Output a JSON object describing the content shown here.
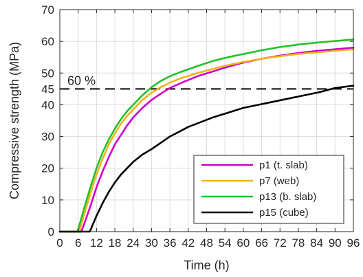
{
  "chart_data": {
    "type": "line",
    "xlabel": "Time (h)",
    "ylabel": "Compressive strength (MPa)",
    "xlim": [
      0,
      96
    ],
    "ylim": [
      0,
      70
    ],
    "grid": true,
    "legend_position": "bottom-right",
    "xticks": [
      0,
      6,
      12,
      18,
      24,
      30,
      36,
      42,
      48,
      54,
      60,
      66,
      72,
      78,
      84,
      90,
      96
    ],
    "yticks": [
      0,
      10,
      20,
      30,
      40,
      45,
      50,
      60,
      70
    ],
    "reference_line": {
      "y": 45,
      "label": "60 %",
      "style": "dashed",
      "color": "#000000"
    },
    "series": [
      {
        "name": "p1  (t. slab)",
        "color": "#cc00cc",
        "x": [
          0,
          7,
          8,
          10,
          12,
          14,
          16,
          18,
          20,
          22,
          24,
          27,
          30,
          33,
          36,
          40,
          45,
          50,
          55,
          60,
          66,
          72,
          78,
          84,
          90,
          96
        ],
        "y": [
          0,
          0,
          2.5,
          8,
          14,
          19,
          23.5,
          27.5,
          30.5,
          33.5,
          36,
          39,
          41.5,
          43.5,
          45.3,
          47,
          49,
          50.5,
          52,
          53.3,
          54.5,
          55.5,
          56.3,
          57,
          57.5,
          58
        ]
      },
      {
        "name": "p7  (web)",
        "color": "#f5b21b",
        "x": [
          0,
          6.3,
          8,
          10,
          12,
          14,
          16,
          18,
          20,
          22,
          24,
          27,
          30,
          33,
          36,
          40,
          45,
          50,
          55,
          60,
          66,
          72,
          78,
          84,
          90,
          96
        ],
        "y": [
          0,
          0,
          5.5,
          12,
          18,
          23,
          27.5,
          31,
          34,
          36.5,
          38.5,
          41.5,
          43.8,
          45.5,
          47,
          48.5,
          50,
          51.3,
          52.5,
          53.5,
          54.5,
          55.3,
          56,
          56.5,
          57,
          57.5
        ]
      },
      {
        "name": "p13 (b. slab)",
        "color": "#22c02a",
        "x": [
          0,
          5.8,
          8,
          10,
          12,
          14,
          16,
          18,
          20,
          22,
          24,
          27,
          30,
          33,
          36,
          40,
          45,
          50,
          55,
          60,
          66,
          72,
          78,
          84,
          90,
          96
        ],
        "y": [
          0,
          0,
          7.5,
          14,
          20,
          25,
          29,
          32.5,
          35.5,
          38,
          40,
          43,
          45.5,
          47.5,
          49,
          50.5,
          52.2,
          53.8,
          55,
          56,
          57.2,
          58.2,
          59,
          59.6,
          60.1,
          60.6
        ]
      },
      {
        "name": "p15 (cube)",
        "color": "#000000",
        "x": [
          0,
          9.8,
          12,
          14,
          16,
          18,
          20,
          22,
          24,
          27,
          30,
          33,
          36,
          39,
          42,
          46,
          50,
          55,
          60,
          65,
          70,
          75,
          80,
          85,
          90,
          96
        ],
        "y": [
          0,
          0,
          5,
          9,
          12.5,
          15.5,
          18,
          20,
          22,
          24.3,
          26,
          28,
          30,
          31.5,
          33,
          34.5,
          36,
          37.5,
          39,
          40,
          41,
          42,
          43,
          44,
          45.3,
          46
        ]
      }
    ]
  }
}
